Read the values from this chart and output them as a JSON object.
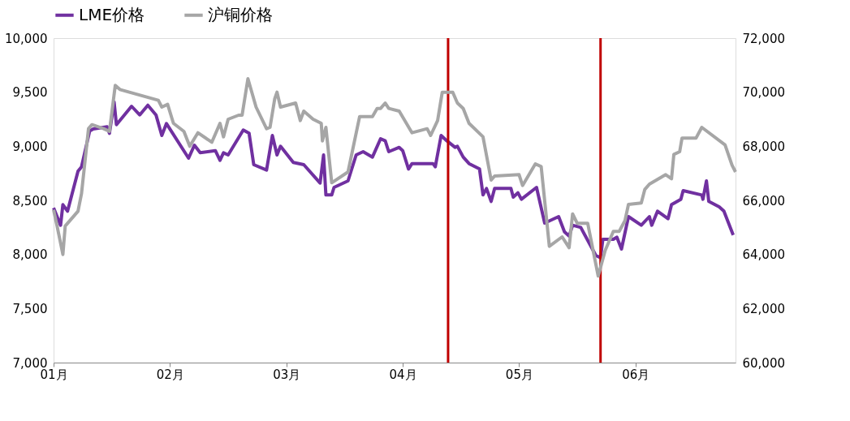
{
  "chart_data": {
    "type": "line",
    "legend": "top",
    "xlim": [
      1,
      6.86
    ],
    "xticks": [
      {
        "value": 1,
        "label": "01月"
      },
      {
        "value": 2,
        "label": "02月"
      },
      {
        "value": 3,
        "label": "03月"
      },
      {
        "value": 4,
        "label": "04月"
      },
      {
        "value": 5,
        "label": "05月"
      },
      {
        "value": 6,
        "label": "06月"
      }
    ],
    "ylim": [
      7000,
      10000
    ],
    "yticks": [
      {
        "value": 7000,
        "label": "7,000"
      },
      {
        "value": 7500,
        "label": "7,500"
      },
      {
        "value": 8000,
        "label": "8,000"
      },
      {
        "value": 8500,
        "label": "8,500"
      },
      {
        "value": 9000,
        "label": "9,000"
      },
      {
        "value": 9500,
        "label": "9,500"
      },
      {
        "value": 10000,
        "label": "10,000"
      }
    ],
    "y2lim": [
      60000,
      72000
    ],
    "y2ticks": [
      {
        "value": 60000,
        "label": "60,000"
      },
      {
        "value": 62000,
        "label": "62,000"
      },
      {
        "value": 64000,
        "label": "64,000"
      },
      {
        "value": 66000,
        "label": "66,000"
      },
      {
        "value": 68000,
        "label": "68,000"
      },
      {
        "value": 70000,
        "label": "70,000"
      },
      {
        "value": 72000,
        "label": "72,000"
      }
    ],
    "ref_lines": [
      {
        "axis": "x",
        "value": 4.39,
        "color": "#c00000"
      },
      {
        "axis": "x",
        "value": 5.7,
        "color": "#c00000"
      }
    ],
    "series": [
      {
        "name": "LME价格",
        "color": "#7030a0",
        "x": [
          1.0,
          1.06,
          1.08,
          1.12,
          1.21,
          1.24,
          1.31,
          1.34,
          1.46,
          1.48,
          1.52,
          1.54,
          1.67,
          1.74,
          1.81,
          1.88,
          1.93,
          1.97,
          2.16,
          2.21,
          2.26,
          2.39,
          2.43,
          2.46,
          2.5,
          2.63,
          2.68,
          2.72,
          2.83,
          2.88,
          2.92,
          2.95,
          3.06,
          3.15,
          3.29,
          3.32,
          3.34,
          3.39,
          3.41,
          3.53,
          3.6,
          3.66,
          3.74,
          3.81,
          3.85,
          3.88,
          3.97,
          4.0,
          4.05,
          4.08,
          4.26,
          4.28,
          4.33,
          4.38,
          4.45,
          4.47,
          4.52,
          4.57,
          4.66,
          4.69,
          4.72,
          4.76,
          4.79,
          4.93,
          4.95,
          4.99,
          5.02,
          5.15,
          5.22,
          5.34,
          5.39,
          5.43,
          5.46,
          5.53,
          5.57,
          5.66,
          5.7,
          5.72,
          5.81,
          5.84,
          5.88,
          5.94,
          6.05,
          6.12,
          6.14,
          6.19,
          6.28,
          6.31,
          6.39,
          6.41,
          6.57,
          6.58,
          6.61,
          6.63,
          6.72,
          6.76,
          6.84
        ],
        "values": [
          8430,
          8270,
          8460,
          8400,
          8770,
          8810,
          9140,
          9160,
          9180,
          9120,
          9410,
          9200,
          9370,
          9290,
          9380,
          9290,
          9100,
          9210,
          8890,
          9010,
          8940,
          8960,
          8870,
          8940,
          8920,
          9150,
          9120,
          8830,
          8780,
          9100,
          8920,
          9000,
          8850,
          8830,
          8660,
          8920,
          8550,
          8550,
          8620,
          8680,
          8920,
          8950,
          8900,
          9070,
          9050,
          8950,
          8990,
          8960,
          8790,
          8840,
          8840,
          8810,
          9100,
          9050,
          8990,
          9000,
          8900,
          8840,
          8790,
          8550,
          8610,
          8490,
          8610,
          8610,
          8530,
          8570,
          8510,
          8620,
          8290,
          8350,
          8210,
          8170,
          8270,
          8250,
          8170,
          7990,
          7970,
          8140,
          8140,
          8160,
          8050,
          8350,
          8270,
          8350,
          8270,
          8400,
          8330,
          8460,
          8510,
          8590,
          8550,
          8510,
          8680,
          8490,
          8440,
          8400,
          8180
        ]
      },
      {
        "name": "沪铜价格",
        "color": "#a6a6a6",
        "axis": "y2",
        "x": [
          1.0,
          1.03,
          1.08,
          1.1,
          1.21,
          1.24,
          1.3,
          1.33,
          1.43,
          1.48,
          1.53,
          1.57,
          1.9,
          1.93,
          1.98,
          2.03,
          2.12,
          2.17,
          2.24,
          2.36,
          2.43,
          2.46,
          2.5,
          2.59,
          2.62,
          2.67,
          2.74,
          2.83,
          2.86,
          2.9,
          2.92,
          2.95,
          3.08,
          3.12,
          3.15,
          3.23,
          3.3,
          3.31,
          3.34,
          3.39,
          3.53,
          3.63,
          3.74,
          3.78,
          3.81,
          3.85,
          3.88,
          3.97,
          4.08,
          4.21,
          4.24,
          4.3,
          4.34,
          4.43,
          4.47,
          4.52,
          4.57,
          4.69,
          4.76,
          4.79,
          5.0,
          5.03,
          5.14,
          5.19,
          5.26,
          5.37,
          5.43,
          5.46,
          5.5,
          5.59,
          5.68,
          5.74,
          5.81,
          5.86,
          5.91,
          5.94,
          6.05,
          6.08,
          6.12,
          6.26,
          6.31,
          6.33,
          6.38,
          6.4,
          6.52,
          6.57,
          6.77,
          6.83,
          6.86
        ],
        "values": [
          65650,
          65050,
          64000,
          65050,
          65600,
          66250,
          68650,
          68800,
          68650,
          68550,
          70250,
          70100,
          69700,
          69450,
          69550,
          68850,
          68550,
          68000,
          68500,
          68150,
          68850,
          68350,
          69000,
          69150,
          69150,
          70500,
          69450,
          68650,
          68700,
          69750,
          70000,
          69450,
          69600,
          68950,
          69300,
          69000,
          68850,
          68200,
          68700,
          66650,
          67050,
          69100,
          69100,
          69400,
          69400,
          69600,
          69400,
          69300,
          68500,
          68650,
          68400,
          68950,
          70000,
          70000,
          69600,
          69400,
          68850,
          68350,
          66750,
          66900,
          66950,
          66550,
          67350,
          67250,
          64300,
          64650,
          64250,
          65500,
          65150,
          65150,
          63200,
          64150,
          64850,
          64850,
          65250,
          65850,
          65900,
          66400,
          66600,
          66950,
          66800,
          67700,
          67800,
          68300,
          68300,
          68700,
          68050,
          67300,
          67050
        ]
      }
    ]
  }
}
